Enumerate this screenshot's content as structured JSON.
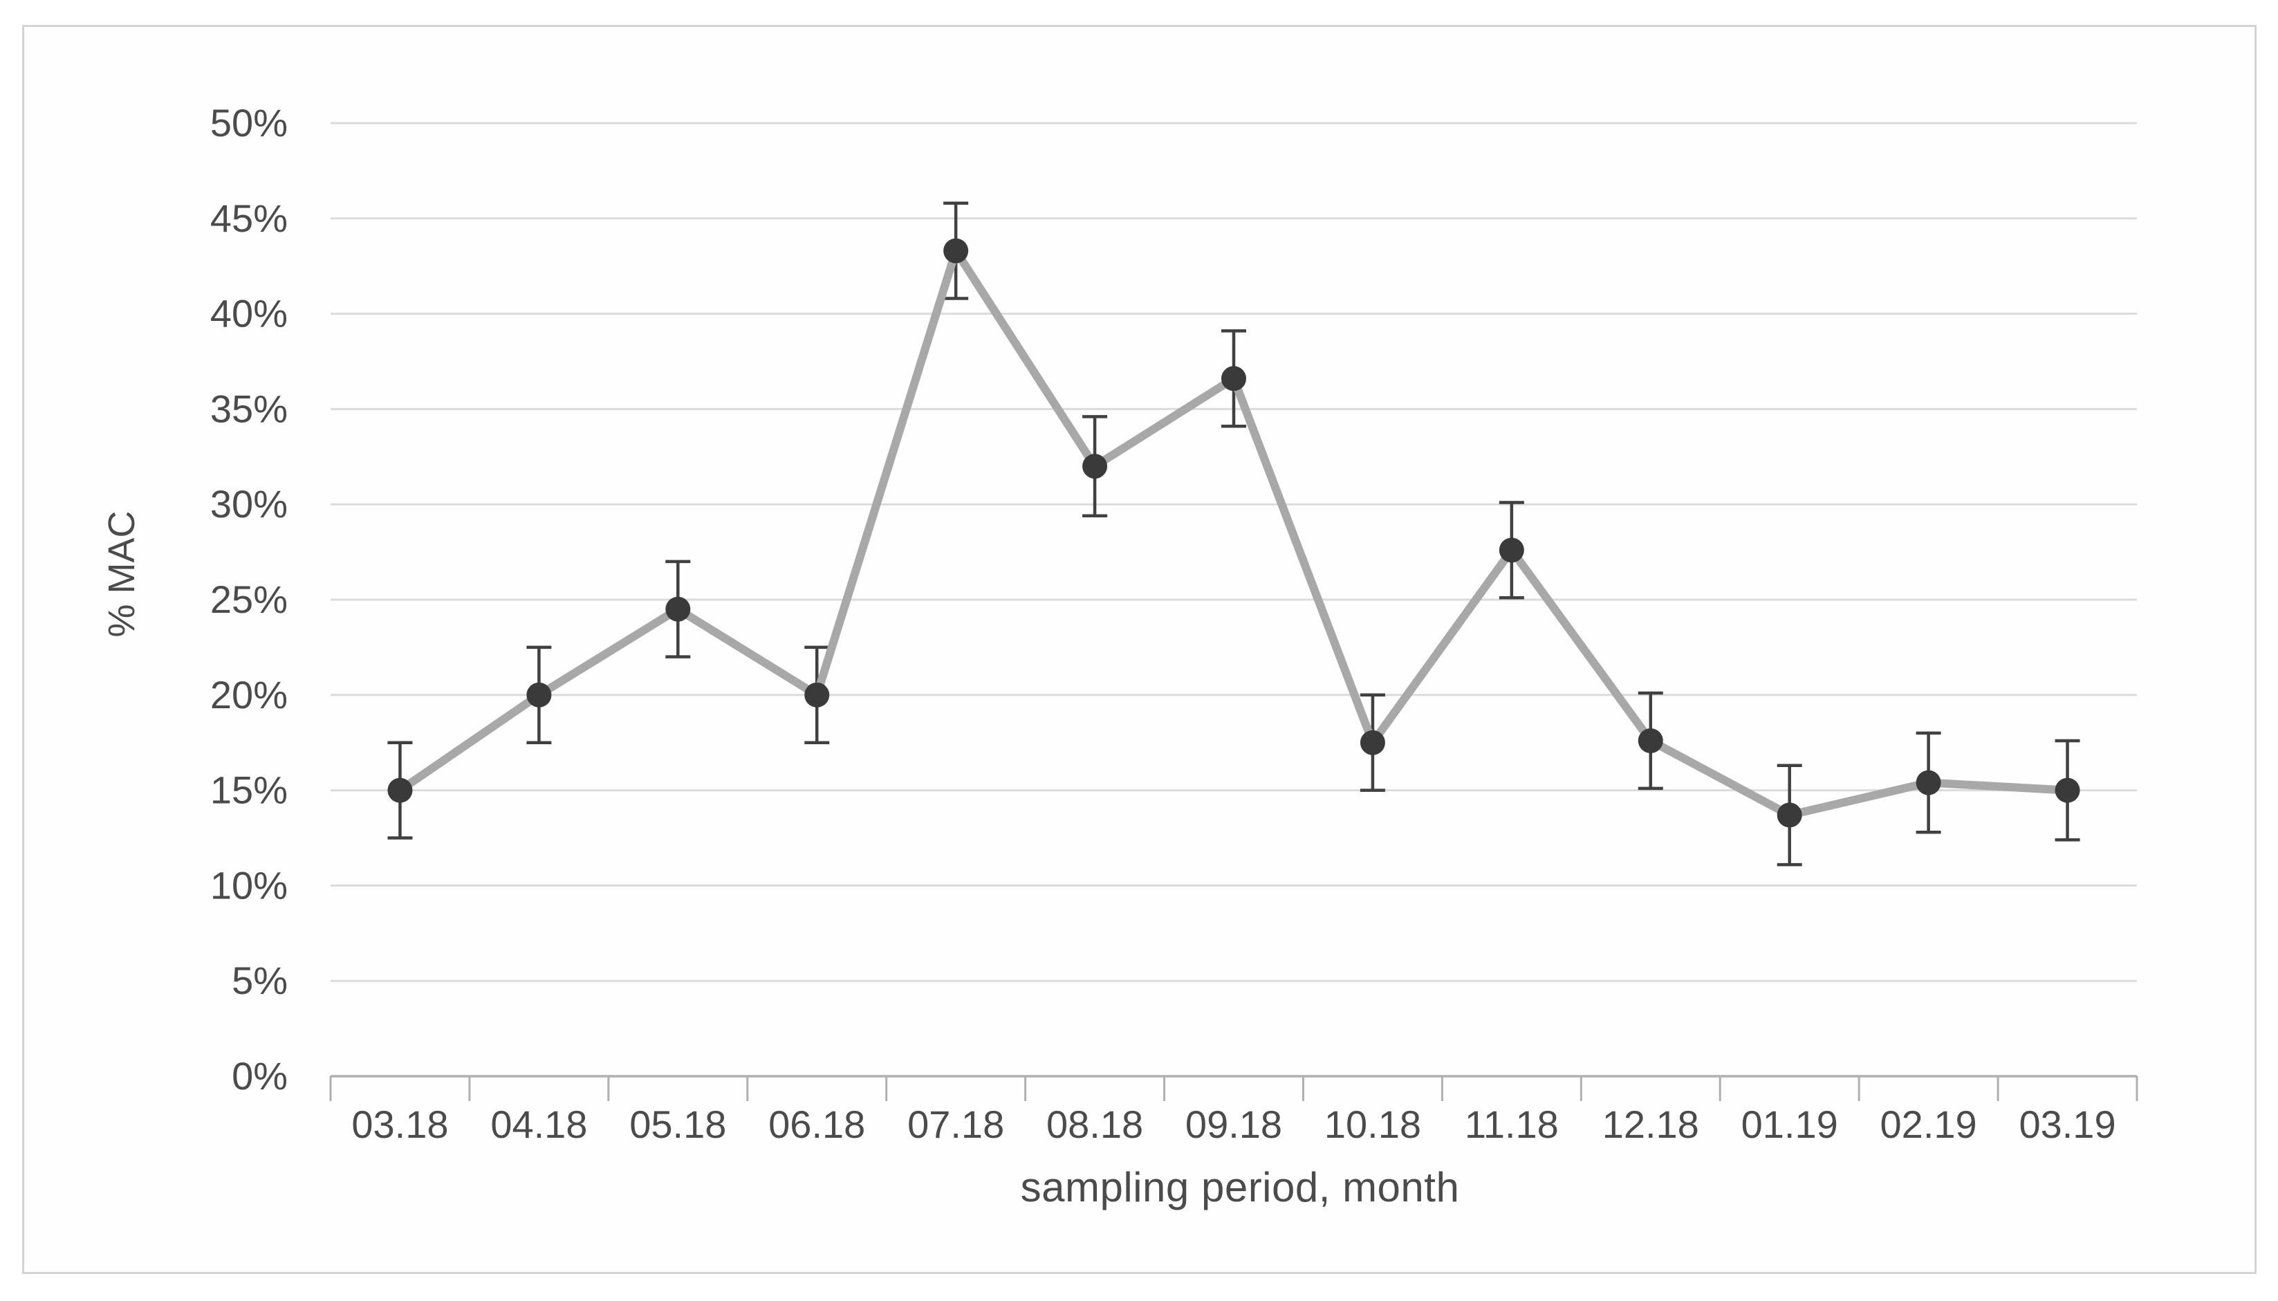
{
  "chart_data": {
    "type": "line",
    "title": "",
    "ylabel": "% MAC",
    "xlabel": "sampling period, month",
    "categories": [
      "03.18",
      "04.18",
      "05.18",
      "06.18",
      "07.18",
      "08.18",
      "09.18",
      "10.18",
      "11.18",
      "12.18",
      "01.19",
      "02.19",
      "03.19"
    ],
    "series": [
      {
        "name": "% MAC",
        "values": [
          15.0,
          20.0,
          24.5,
          20.0,
          43.3,
          32.0,
          36.6,
          17.5,
          27.6,
          17.6,
          13.7,
          15.4,
          15.0
        ],
        "error_bars": [
          2.5,
          2.5,
          2.5,
          2.5,
          2.5,
          2.6,
          2.5,
          2.5,
          2.5,
          2.5,
          2.6,
          2.6,
          2.6
        ]
      }
    ],
    "y_axis": {
      "min": 0,
      "max": 50,
      "step": 5,
      "tick_suffix": "%"
    },
    "grid": true,
    "legend": false,
    "marker": "circle",
    "style": {
      "background": "#ffffff",
      "frame_border": "#d4d4d4",
      "gridline": "#dbdbdb",
      "axis_line": "#b0b0b0",
      "series_line": "#a8a8a8",
      "marker_fill": "#3a3a3a",
      "error_bar": "#404040",
      "label_text": "#4b4b4b"
    }
  }
}
